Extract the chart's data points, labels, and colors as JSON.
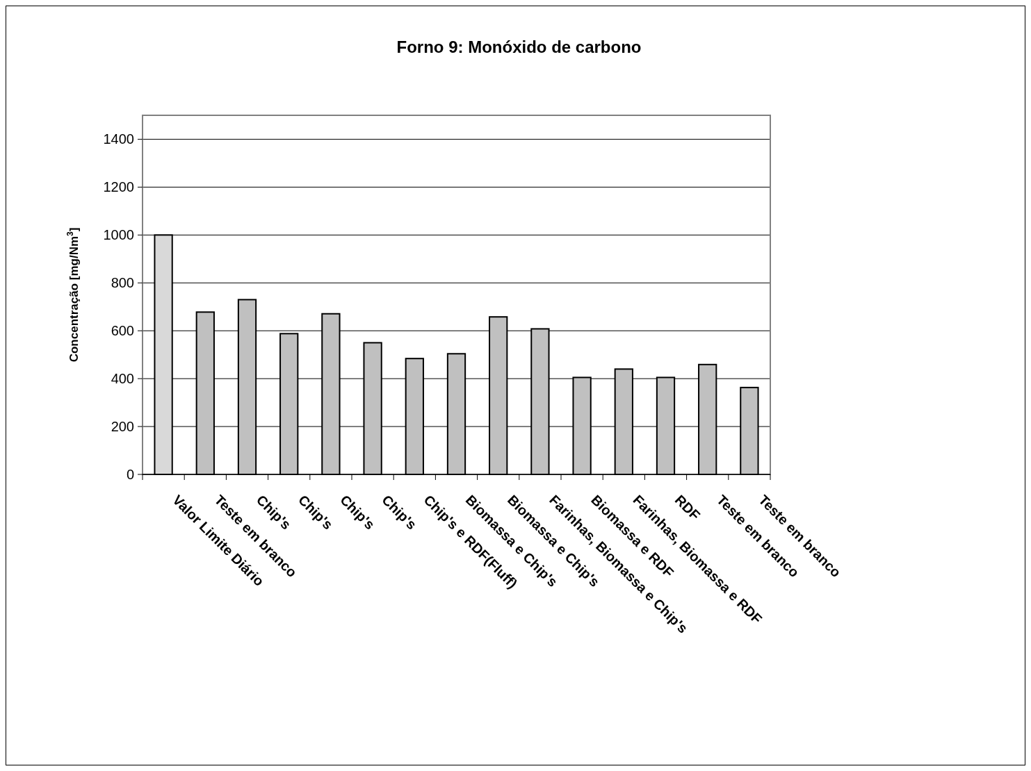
{
  "chart_data": {
    "type": "bar",
    "title": "Forno 9: Monóxido de carbono",
    "ylabel": "Concentração [mg/Nm$^{3}$]",
    "categories": [
      "Valor Limite Diário",
      "Teste em branco",
      "Chip's",
      "Chip's",
      "Chip's",
      "Chip's",
      "Chip's e RDF(Fluff)",
      "Biomassa e Chip's",
      "Biomassa e Chip's",
      "Farinhas, Biomassa e Chip's",
      "Biomassa e RDF",
      "Farinhas, Biomassa e RDF",
      "RDF",
      "Teste em branco",
      "Teste em branco"
    ],
    "values": [
      1000,
      678,
      730,
      588,
      671,
      550,
      484,
      504,
      658,
      608,
      405,
      440,
      405,
      459,
      363
    ],
    "colors": [
      "#d9d9d9",
      "#c0c0c0",
      "#c0c0c0",
      "#c0c0c0",
      "#c0c0c0",
      "#c0c0c0",
      "#c0c0c0",
      "#c0c0c0",
      "#c0c0c0",
      "#c0c0c0",
      "#c0c0c0",
      "#c0c0c0",
      "#c0c0c0",
      "#c0c0c0",
      "#c0c0c0"
    ],
    "ylim": [
      0,
      1500
    ],
    "yticks": [
      0,
      200,
      400,
      600,
      800,
      1000,
      1200,
      1400
    ],
    "grid": "y"
  }
}
